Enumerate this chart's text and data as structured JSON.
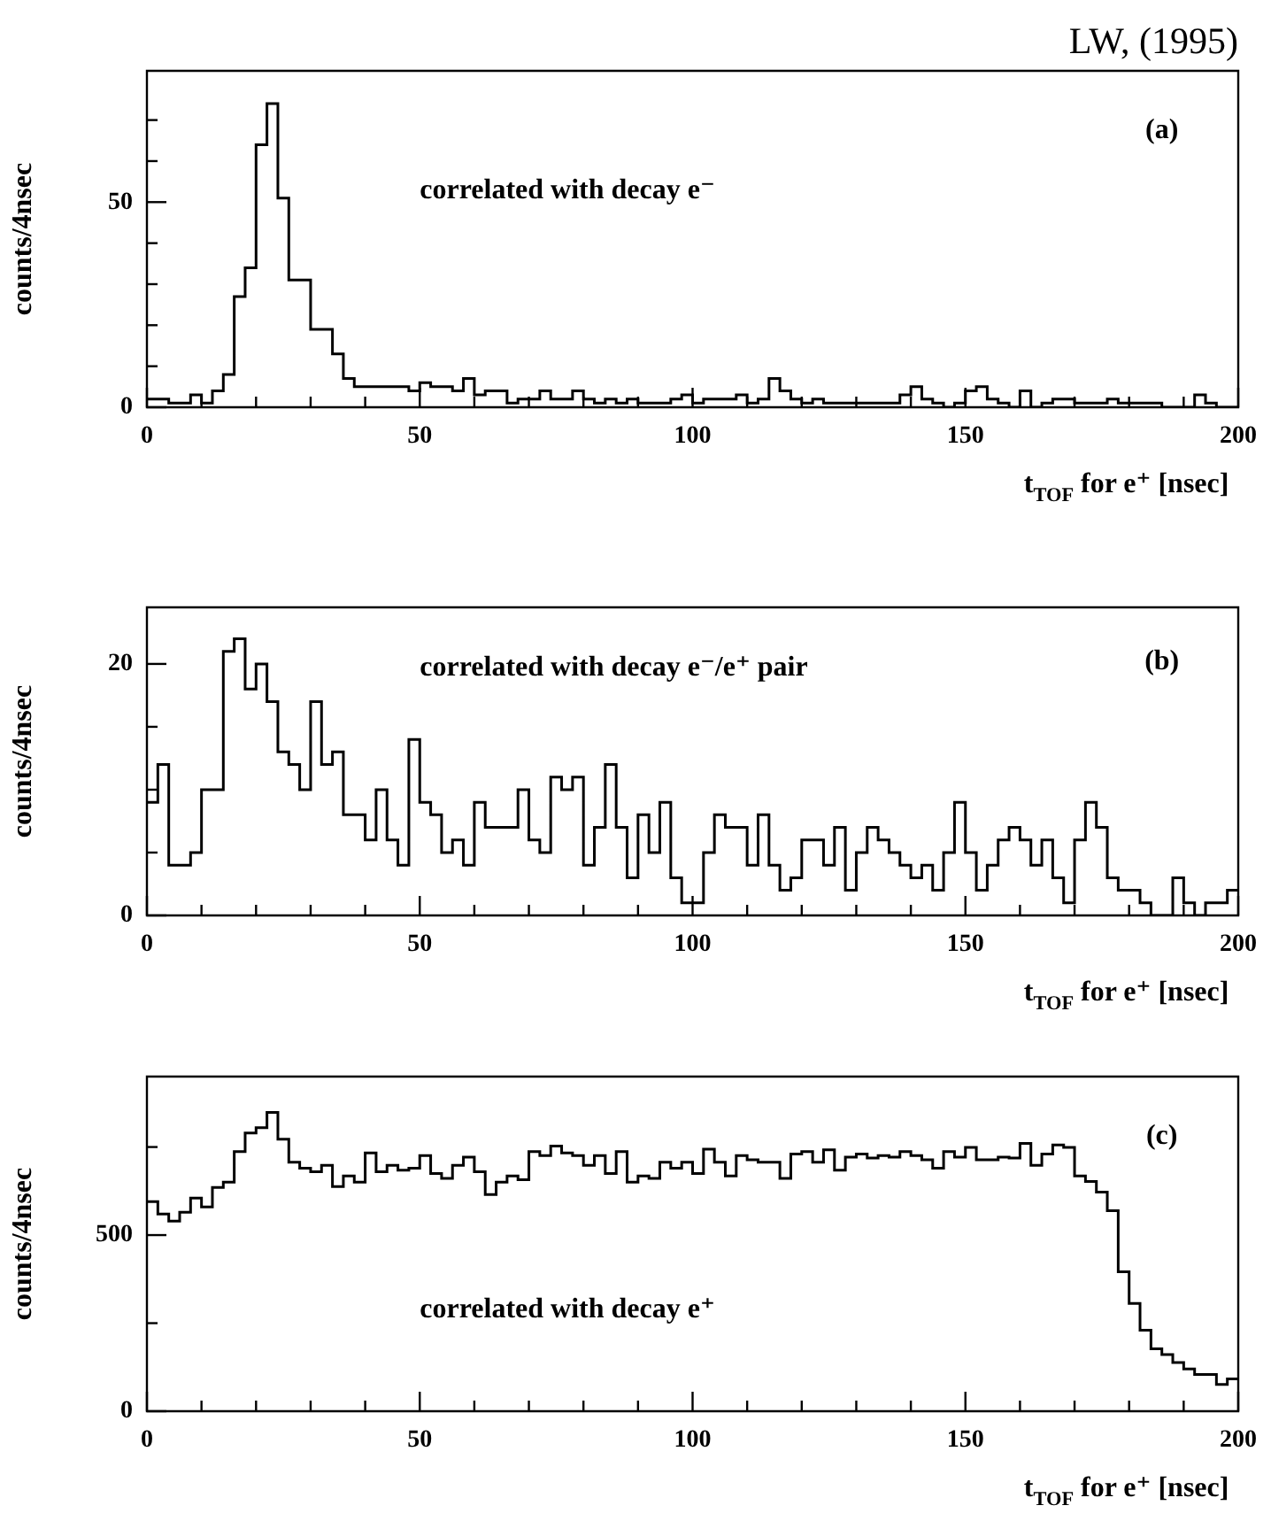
{
  "chart_data": [
    {
      "type": "histogram",
      "title": "LW, (1995)",
      "xlabel": "t$_{TOF}$ for e⁺ [nsec]",
      "ylabel": "counts/4nsec",
      "annotations": [
        "(a)",
        "correlated with decay e⁻"
      ],
      "color": "#000000",
      "bins": [
        0,
        2,
        4,
        6,
        8,
        10,
        12,
        14,
        16,
        18,
        20,
        22,
        24,
        26,
        28,
        30,
        32,
        34,
        36,
        38,
        40,
        42,
        44,
        46,
        48,
        50,
        52,
        54,
        56,
        58,
        60,
        62,
        64,
        66,
        68,
        70,
        72,
        74,
        76,
        78,
        80,
        82,
        84,
        86,
        88,
        90,
        92,
        94,
        96,
        98,
        100,
        102,
        104,
        106,
        108,
        110,
        112,
        114,
        116,
        118,
        120,
        122,
        124,
        126,
        128,
        130,
        132,
        134,
        136,
        138,
        140,
        142,
        144,
        146,
        148,
        150,
        152,
        154,
        156,
        158,
        160,
        162,
        164,
        166,
        168,
        170,
        172,
        174,
        176,
        178,
        180,
        182,
        184,
        186,
        188,
        190,
        192,
        194,
        196,
        198,
        200
      ],
      "values": [
        2,
        2,
        1,
        1,
        3,
        1,
        4,
        8,
        27,
        34,
        64,
        74,
        51,
        31,
        31,
        19,
        19,
        13,
        7,
        5,
        5,
        5,
        5,
        5,
        4,
        6,
        5,
        5,
        4,
        7,
        3,
        4,
        4,
        1,
        2,
        2,
        4,
        2,
        2,
        4,
        2,
        1,
        2,
        1,
        2,
        1,
        1,
        1,
        2,
        3,
        1,
        2,
        2,
        2,
        3,
        1,
        2,
        7,
        4,
        2,
        1,
        2,
        1,
        1,
        1,
        1,
        1,
        1,
        1,
        3,
        5,
        2,
        1,
        0,
        1,
        4,
        5,
        2,
        1,
        0,
        4,
        0,
        1,
        2,
        2,
        1,
        1,
        1,
        2,
        1,
        1,
        1,
        1,
        0,
        0,
        0,
        3,
        1,
        0,
        0
      ],
      "xlim": [
        0,
        200
      ],
      "xticks": [
        0,
        {
          "value": 10,
          "label": null
        },
        {
          "value": 20,
          "label": null
        },
        {
          "value": 30,
          "label": null
        },
        {
          "value": 40,
          "label": null
        },
        50,
        {
          "value": 60,
          "label": null
        },
        {
          "value": 70,
          "label": null
        },
        {
          "value": 80,
          "label": null
        },
        {
          "value": 90,
          "label": null
        },
        100,
        {
          "value": 110,
          "label": null
        },
        {
          "value": 120,
          "label": null
        },
        {
          "value": 130,
          "label": null
        },
        {
          "value": 140,
          "label": null
        },
        150,
        {
          "value": 160,
          "label": null
        },
        {
          "value": 170,
          "label": null
        },
        {
          "value": 180,
          "label": null
        },
        {
          "value": 190,
          "label": null
        },
        200
      ],
      "ylim": [
        0,
        82
      ],
      "yticks": [
        0,
        {
          "value": 10,
          "label": null
        },
        {
          "value": 20,
          "label": null
        },
        {
          "value": 30,
          "label": null
        },
        {
          "value": 40,
          "label": null
        },
        50,
        {
          "value": 60,
          "label": null
        },
        {
          "value": 70,
          "label": null
        }
      ]
    },
    {
      "type": "histogram",
      "xlabel": "t$_{TOF}$ for e⁺ [nsec]",
      "ylabel": "counts/4nsec",
      "annotations": [
        "(b)",
        "correlated with decay e⁻/e⁺ pair"
      ],
      "color": "#000000",
      "bins": [
        0,
        2,
        4,
        6,
        8,
        10,
        12,
        14,
        16,
        18,
        20,
        22,
        24,
        26,
        28,
        30,
        32,
        34,
        36,
        38,
        40,
        42,
        44,
        46,
        48,
        50,
        52,
        54,
        56,
        58,
        60,
        62,
        64,
        66,
        68,
        70,
        72,
        74,
        76,
        78,
        80,
        82,
        84,
        86,
        88,
        90,
        92,
        94,
        96,
        98,
        100,
        102,
        104,
        106,
        108,
        110,
        112,
        114,
        116,
        118,
        120,
        122,
        124,
        126,
        128,
        130,
        132,
        134,
        136,
        138,
        140,
        142,
        144,
        146,
        148,
        150,
        152,
        154,
        156,
        158,
        160,
        162,
        164,
        166,
        168,
        170,
        172,
        174,
        176,
        178,
        180,
        182,
        184,
        186,
        188,
        190,
        192,
        194,
        196,
        198,
        200
      ],
      "values": [
        9,
        12,
        4,
        4,
        5,
        10,
        10,
        21,
        22,
        18,
        20,
        17,
        13,
        12,
        10,
        17,
        12,
        13,
        8,
        8,
        6,
        10,
        6,
        4,
        14,
        9,
        8,
        5,
        6,
        4,
        9,
        7,
        7,
        7,
        10,
        6,
        5,
        11,
        10,
        11,
        4,
        7,
        12,
        7,
        3,
        8,
        5,
        9,
        3,
        1,
        1,
        5,
        8,
        7,
        7,
        4,
        8,
        4,
        2,
        3,
        6,
        6,
        4,
        7,
        2,
        5,
        7,
        6,
        5,
        4,
        3,
        4,
        2,
        5,
        9,
        5,
        2,
        4,
        6,
        7,
        6,
        4,
        6,
        3,
        1,
        6,
        9,
        7,
        3,
        2,
        2,
        1,
        0,
        0,
        3,
        1,
        0,
        1,
        1,
        2
      ],
      "xlim": [
        0,
        200
      ],
      "xticks": [
        0,
        {
          "value": 10,
          "label": null
        },
        {
          "value": 20,
          "label": null
        },
        {
          "value": 30,
          "label": null
        },
        {
          "value": 40,
          "label": null
        },
        50,
        {
          "value": 60,
          "label": null
        },
        {
          "value": 70,
          "label": null
        },
        {
          "value": 80,
          "label": null
        },
        {
          "value": 90,
          "label": null
        },
        100,
        {
          "value": 110,
          "label": null
        },
        {
          "value": 120,
          "label": null
        },
        {
          "value": 130,
          "label": null
        },
        {
          "value": 140,
          "label": null
        },
        150,
        {
          "value": 160,
          "label": null
        },
        {
          "value": 170,
          "label": null
        },
        {
          "value": 180,
          "label": null
        },
        {
          "value": 190,
          "label": null
        },
        200
      ],
      "ylim": [
        0,
        24.5
      ],
      "yticks": [
        0,
        {
          "value": 5,
          "label": null
        },
        {
          "value": 10,
          "label": null
        },
        {
          "value": 15,
          "label": null
        },
        20
      ]
    },
    {
      "type": "histogram",
      "xlabel": "t$_{TOF}$ for e⁺ [nsec]",
      "ylabel": "counts/4nsec",
      "annotations": [
        "(c)",
        "correlated with decay e⁺"
      ],
      "color": "#000000",
      "bins": [
        0,
        2,
        4,
        6,
        8,
        10,
        12,
        14,
        16,
        18,
        20,
        22,
        24,
        26,
        28,
        30,
        32,
        34,
        36,
        38,
        40,
        42,
        44,
        46,
        48,
        50,
        52,
        54,
        56,
        58,
        60,
        62,
        64,
        66,
        68,
        70,
        72,
        74,
        76,
        78,
        80,
        82,
        84,
        86,
        88,
        90,
        92,
        94,
        96,
        98,
        100,
        102,
        104,
        106,
        108,
        110,
        112,
        114,
        116,
        118,
        120,
        122,
        124,
        126,
        128,
        130,
        132,
        134,
        136,
        138,
        140,
        142,
        144,
        146,
        148,
        150,
        152,
        154,
        156,
        158,
        160,
        162,
        164,
        166,
        168,
        170,
        172,
        174,
        176,
        178,
        180,
        182,
        184,
        186,
        188,
        190,
        192,
        194,
        196,
        198,
        200
      ],
      "values": [
        595,
        560,
        540,
        565,
        605,
        580,
        635,
        650,
        737,
        790,
        805,
        848,
        772,
        707,
        690,
        680,
        698,
        638,
        668,
        650,
        733,
        680,
        698,
        684,
        690,
        726,
        675,
        661,
        698,
        721,
        680,
        615,
        650,
        668,
        657,
        737,
        726,
        753,
        733,
        726,
        698,
        726,
        675,
        737,
        650,
        668,
        661,
        707,
        690,
        707,
        675,
        744,
        707,
        668,
        726,
        714,
        707,
        707,
        661,
        730,
        737,
        707,
        742,
        684,
        721,
        730,
        719,
        726,
        721,
        737,
        726,
        714,
        690,
        737,
        721,
        749,
        714,
        714,
        721,
        719,
        760,
        698,
        730,
        756,
        749,
        668,
        652,
        622,
        569,
        396,
        306,
        230,
        177,
        161,
        138,
        120,
        104,
        104,
        76,
        92
      ],
      "xlim": [
        0,
        200
      ],
      "xticks": [
        0,
        {
          "value": 10,
          "label": null
        },
        {
          "value": 20,
          "label": null
        },
        {
          "value": 30,
          "label": null
        },
        {
          "value": 40,
          "label": null
        },
        50,
        {
          "value": 60,
          "label": null
        },
        {
          "value": 70,
          "label": null
        },
        {
          "value": 80,
          "label": null
        },
        {
          "value": 90,
          "label": null
        },
        100,
        {
          "value": 110,
          "label": null
        },
        {
          "value": 120,
          "label": null
        },
        {
          "value": 130,
          "label": null
        },
        {
          "value": 140,
          "label": null
        },
        150,
        {
          "value": 160,
          "label": null
        },
        {
          "value": 170,
          "label": null
        },
        {
          "value": 180,
          "label": null
        },
        {
          "value": 190,
          "label": null
        },
        200
      ],
      "ylim": [
        0,
        950
      ],
      "yticks": [
        0,
        {
          "value": 250,
          "label": null
        },
        500,
        {
          "value": 750,
          "label": null
        }
      ]
    }
  ]
}
